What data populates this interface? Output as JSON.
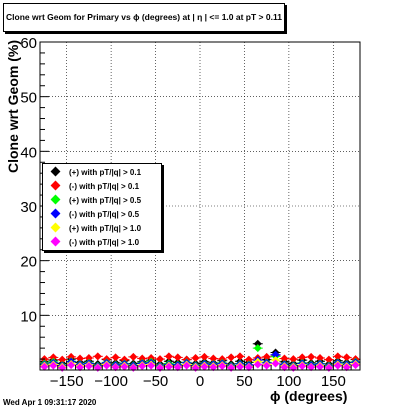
{
  "title": "Clone wrt Geom for Primary vs ϕ (degrees) at | η | <= 1.0 at pT > 0.11",
  "footer": "Wed Apr  1 09:31:17 2020",
  "chart_data": {
    "type": "scatter",
    "title": "Clone wrt Geom for Primary vs ϕ (degrees) at | η | <= 1.0 at pT > 0.11",
    "xlabel": "ϕ (degrees)",
    "ylabel": "Clone wrt Geom (%)",
    "xlim": [
      -180,
      180
    ],
    "ylim": [
      0,
      60
    ],
    "xticks": [
      -150,
      -100,
      -50,
      0,
      50,
      100,
      150
    ],
    "yticks": [
      10,
      20,
      30,
      40,
      50,
      60
    ],
    "grid": true,
    "legend_position": "left-middle",
    "x": [
      -175,
      -165,
      -155,
      -145,
      -135,
      -125,
      -115,
      -105,
      -95,
      -85,
      -75,
      -65,
      -55,
      -45,
      -35,
      -25,
      -15,
      -5,
      5,
      15,
      25,
      35,
      45,
      55,
      65,
      75,
      85,
      95,
      105,
      115,
      125,
      135,
      145,
      155,
      165,
      175
    ],
    "series": [
      {
        "name": "(+) with pT/|q| > 0.1",
        "color": "#000000",
        "values": [
          1.5,
          1.8,
          1.2,
          2.0,
          1.4,
          1.6,
          1.1,
          1.9,
          1.3,
          1.7,
          1.2,
          1.5,
          1.8,
          1.1,
          1.6,
          1.4,
          1.9,
          1.2,
          1.5,
          1.3,
          1.7,
          1.1,
          1.6,
          1.4,
          4.8,
          1.9,
          3.2,
          1.5,
          1.2,
          1.8,
          1.3,
          1.6,
          1.1,
          1.7,
          1.4,
          1.9
        ]
      },
      {
        "name": "(-) with pT/|q| > 0.1",
        "color": "#ff0000",
        "values": [
          2.0,
          2.3,
          1.9,
          2.4,
          2.1,
          2.2,
          2.5,
          2.0,
          2.3,
          1.9,
          2.4,
          2.1,
          2.2,
          2.0,
          2.5,
          2.3,
          1.9,
          2.2,
          2.4,
          2.1,
          2.0,
          2.3,
          2.5,
          1.9,
          2.2,
          2.4,
          2.6,
          2.1,
          2.0,
          2.3,
          2.4,
          2.2,
          1.9,
          2.5,
          2.3,
          2.0
        ]
      },
      {
        "name": "(+) with pT/|q| > 0.5",
        "color": "#00ff00",
        "values": [
          1.2,
          1.5,
          0.9,
          1.6,
          1.1,
          1.3,
          0.8,
          1.4,
          1.0,
          1.2,
          0.9,
          1.3,
          1.5,
          0.8,
          1.2,
          1.0,
          1.4,
          0.9,
          1.2,
          1.1,
          1.3,
          0.8,
          1.2,
          1.0,
          4.0,
          1.4,
          2.5,
          1.1,
          0.9,
          1.3,
          1.0,
          1.2,
          0.8,
          1.4,
          1.1,
          1.5
        ]
      },
      {
        "name": "(-) with pT/|q| > 0.5",
        "color": "#0000ff",
        "values": [
          1.0,
          1.3,
          0.8,
          1.5,
          1.0,
          1.2,
          0.7,
          1.3,
          0.9,
          1.1,
          0.8,
          1.2,
          1.3,
          0.7,
          1.0,
          0.9,
          1.3,
          0.8,
          1.1,
          1.0,
          1.2,
          0.7,
          1.1,
          0.9,
          1.8,
          1.3,
          2.8,
          1.0,
          0.8,
          1.2,
          0.9,
          1.1,
          0.7,
          1.3,
          1.0,
          1.4
        ]
      },
      {
        "name": "(+) with pT/|q| > 1.0",
        "color": "#ffff00",
        "values": [
          0.8,
          1.0,
          0.6,
          1.1,
          0.7,
          0.9,
          0.5,
          1.0,
          0.6,
          0.8,
          0.5,
          0.9,
          1.0,
          0.5,
          0.8,
          0.6,
          1.0,
          0.6,
          0.8,
          0.7,
          0.9,
          0.5,
          0.8,
          0.6,
          1.5,
          1.0,
          1.8,
          0.7,
          0.6,
          0.9,
          0.6,
          0.8,
          0.5,
          1.0,
          0.7,
          1.1
        ]
      },
      {
        "name": "(-) with pT/|q| > 1.0",
        "color": "#ff00ff",
        "values": [
          0.6,
          0.8,
          0.4,
          0.9,
          0.5,
          0.7,
          0.4,
          0.8,
          0.5,
          0.6,
          0.4,
          0.7,
          0.8,
          0.4,
          0.6,
          0.5,
          0.8,
          0.4,
          0.6,
          0.5,
          0.7,
          0.4,
          0.6,
          0.5,
          1.0,
          0.8,
          1.2,
          0.5,
          0.4,
          0.7,
          0.5,
          0.6,
          0.4,
          0.8,
          0.5,
          0.9
        ]
      }
    ]
  }
}
